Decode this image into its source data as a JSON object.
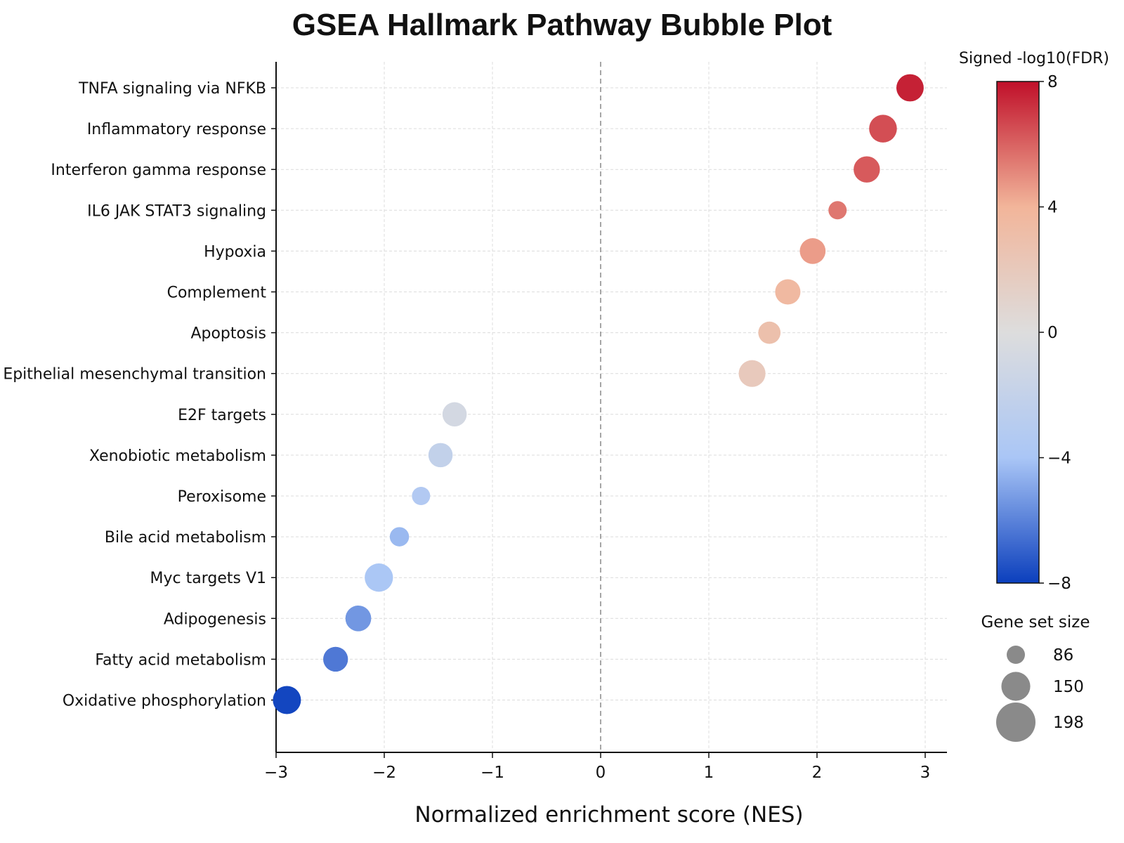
{
  "chart_data": {
    "type": "scatter",
    "title": "GSEA Hallmark Pathway Bubble Plot",
    "xlabel": "Normalized enrichment score (NES)",
    "xlim": [
      -3,
      3.1
    ],
    "xticks": [
      -3,
      -2,
      -1,
      0,
      1,
      2,
      3
    ],
    "xtick_labels": [
      "−3",
      "−2",
      "−1",
      "0",
      "1",
      "2",
      "3"
    ],
    "zero_line": true,
    "grid": true,
    "categories": [
      "TNFA signaling via NFKB",
      "Inflammatory response",
      "Interferon gamma response",
      "IL6 JAK STAT3 signaling",
      "Hypoxia",
      "Complement",
      "Apoptosis",
      "Epithelial mesenchymal transition",
      "E2F targets",
      "Xenobiotic metabolism",
      "Peroxisome",
      "Bile acid metabolism",
      "Myc targets V1",
      "Adipogenesis",
      "Fatty acid metabolism",
      "Oxidative phosphorylation"
    ],
    "nes": [
      2.86,
      2.61,
      2.46,
      2.19,
      1.96,
      1.73,
      1.56,
      1.4,
      -1.35,
      -1.48,
      -1.66,
      -1.86,
      -2.05,
      -2.24,
      -2.45,
      -2.9
    ],
    "signed_log10_fdr": [
      7.6,
      6.5,
      6.2,
      5.5,
      4.6,
      3.6,
      2.9,
      2.0,
      -0.8,
      -2.1,
      -3.4,
      -4.4,
      -3.9,
      -5.4,
      -6.3,
      -7.8
    ],
    "gene_set_size": [
      190,
      195,
      180,
      100,
      175,
      170,
      140,
      185,
      160,
      160,
      100,
      110,
      200,
      175,
      165,
      198
    ],
    "colorbar": {
      "title": "Signed -log10(FDR)",
      "range": [
        -8,
        8
      ],
      "ticks": [
        8,
        4,
        0,
        -4,
        -8
      ],
      "tick_labels": [
        "8",
        "4",
        "0",
        "−4",
        "−8"
      ],
      "colors": [
        "#0b3fbd",
        "#aac6f6",
        "#dddddd",
        "#f2b59a",
        "#c0102a"
      ]
    },
    "size_legend": {
      "title": "Gene set size",
      "values": [
        86,
        150,
        198
      ],
      "labels": [
        "86",
        "150",
        "198"
      ]
    }
  }
}
